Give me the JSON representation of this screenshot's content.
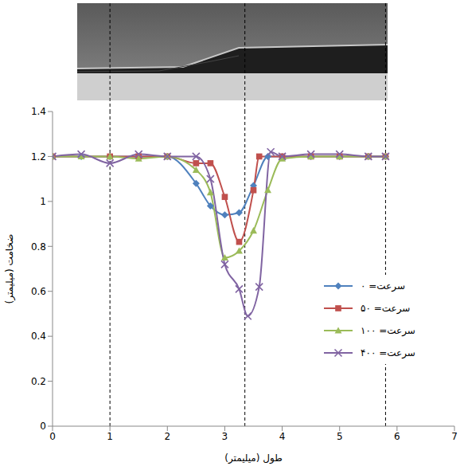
{
  "chart_data": {
    "type": "line",
    "xlabel": "طول (میلیمتر)",
    "ylabel": "ضخامت (میلیمتر)",
    "xlim": [
      0,
      7
    ],
    "xticks": [
      0,
      1,
      2,
      3,
      4,
      5,
      6,
      7
    ],
    "ylim": [
      0,
      1.4
    ],
    "yticks": [
      0,
      0.2,
      0.4,
      0.6,
      0.8,
      1,
      1.2,
      1.4
    ],
    "grid": false,
    "legend": "right",
    "line_style": "smooth",
    "vlines": [
      1,
      3.35,
      5.8
    ],
    "series": [
      {
        "name": "سرعت= ۰",
        "color": "#4f81bd",
        "marker": "diamond",
        "x": [
          0,
          0.5,
          1,
          1.5,
          2,
          2.5,
          2.75,
          3,
          3.25,
          3.5,
          3.75,
          4,
          4.5,
          5,
          5.5,
          5.8
        ],
        "values": [
          1.2,
          1.2,
          1.2,
          1.2,
          1.2,
          1.08,
          0.98,
          0.94,
          0.95,
          1.07,
          1.2,
          1.2,
          1.2,
          1.2,
          1.2,
          1.2
        ]
      },
      {
        "name": "سرعت= ۵۰",
        "color": "#c0504d",
        "marker": "square",
        "x": [
          0,
          1,
          1.5,
          2,
          2.5,
          2.75,
          3,
          3.25,
          3.5,
          3.6,
          4,
          4.5,
          5,
          5.5,
          5.8
        ],
        "values": [
          1.2,
          1.2,
          1.2,
          1.2,
          1.17,
          1.17,
          1.02,
          0.82,
          1.05,
          1.2,
          1.2,
          1.2,
          1.2,
          1.2,
          1.2
        ]
      },
      {
        "name": "سرعت= ۱۰۰",
        "color": "#9bbb59",
        "marker": "triangle",
        "x": [
          0,
          0.5,
          1,
          1.5,
          2,
          2.5,
          2.75,
          3,
          3.25,
          3.5,
          3.75,
          4,
          4.5,
          5,
          5.5,
          5.8
        ],
        "values": [
          1.2,
          1.2,
          1.2,
          1.19,
          1.2,
          1.14,
          1.04,
          0.75,
          0.78,
          0.87,
          1.05,
          1.19,
          1.2,
          1.2,
          1.2,
          1.2
        ]
      },
      {
        "name": "سرعت= ۴۰۰",
        "color": "#8064a2",
        "marker": "x",
        "x": [
          0,
          0.5,
          1,
          1.5,
          2,
          2.5,
          2.75,
          3,
          3.25,
          3.4,
          3.6,
          3.8,
          4,
          4.5,
          5,
          5.5,
          5.8
        ],
        "values": [
          1.2,
          1.21,
          1.17,
          1.21,
          1.2,
          1.2,
          1.1,
          0.72,
          0.61,
          0.49,
          0.62,
          1.22,
          1.2,
          1.21,
          1.21,
          1.2,
          1.2
        ]
      }
    ]
  }
}
